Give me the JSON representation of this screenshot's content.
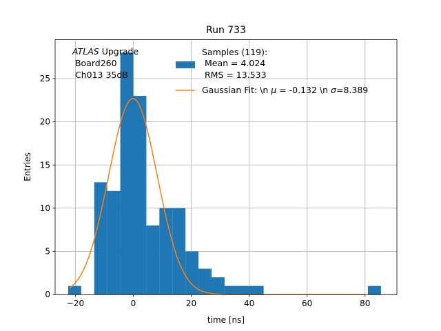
{
  "chart_data": {
    "type": "bar",
    "title": "Run 733",
    "xlabel": "time [ns]",
    "ylabel": "Entries",
    "xlim": [
      -27,
      91
    ],
    "ylim": [
      0,
      29.5
    ],
    "xticks": [
      -20,
      0,
      20,
      40,
      60,
      80
    ],
    "yticks": [
      0,
      5,
      10,
      15,
      20,
      25
    ],
    "grid": true,
    "colors": {
      "bars": "#1f77b4",
      "fit": "#ff7f0e"
    },
    "histogram": {
      "bins": [
        {
          "x0": -22.5,
          "x1": -18.0,
          "count": 1
        },
        {
          "x0": -13.5,
          "x1": -9.0,
          "count": 13
        },
        {
          "x0": -9.0,
          "x1": -4.5,
          "count": 12
        },
        {
          "x0": -4.5,
          "x1": 0.0,
          "count": 28
        },
        {
          "x0": 0.0,
          "x1": 4.5,
          "count": 23
        },
        {
          "x0": 4.5,
          "x1": 9.0,
          "count": 8
        },
        {
          "x0": 9.0,
          "x1": 13.5,
          "count": 10
        },
        {
          "x0": 13.5,
          "x1": 18.0,
          "count": 10
        },
        {
          "x0": 18.0,
          "x1": 22.5,
          "count": 5
        },
        {
          "x0": 22.5,
          "x1": 27.0,
          "count": 3
        },
        {
          "x0": 27.0,
          "x1": 31.5,
          "count": 2
        },
        {
          "x0": 31.5,
          "x1": 45.0,
          "count": 1
        },
        {
          "x0": 81.0,
          "x1": 85.5,
          "count": 1
        }
      ]
    },
    "fit": {
      "mu": -0.132,
      "sigma": 8.389,
      "amplitude": 22.7,
      "x_range": [
        -22,
        80
      ]
    },
    "legend": {
      "placement": "top-right",
      "samples_lines": [
        "Samples (119):",
        " Mean = 4.024",
        " RMS = 13.533"
      ],
      "fit_prefix": "Gaussian Fit: \\n ",
      "fit_mu_symbol": "μ",
      "fit_mid": " = -0.132 \\n ",
      "fit_sigma_symbol": "σ",
      "fit_suffix": "=8.389"
    },
    "annotation": {
      "atlas": "ATLAS",
      "atlas_rest": " Upgrade",
      "line2": " Board260",
      "line3": " Ch013 35dB"
    }
  }
}
